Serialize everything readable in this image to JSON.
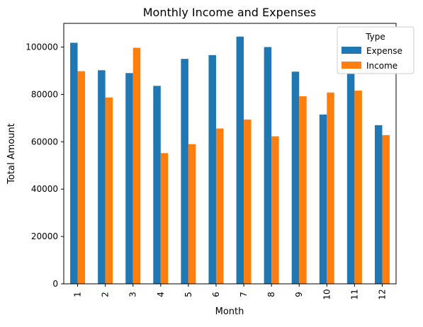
{
  "chart_data": {
    "type": "bar",
    "title": "Monthly Income and Expenses",
    "xlabel": "Month",
    "ylabel": "Total Amount",
    "categories": [
      "1",
      "2",
      "3",
      "4",
      "5",
      "6",
      "7",
      "8",
      "9",
      "10",
      "11",
      "12"
    ],
    "series": [
      {
        "name": "Expense",
        "color": "#1f77b4",
        "values": [
          101800,
          90200,
          89000,
          83600,
          95000,
          96600,
          104400,
          100000,
          89600,
          71500,
          90500,
          67000
        ]
      },
      {
        "name": "Income",
        "color": "#ff7f0e",
        "values": [
          89800,
          78700,
          99700,
          55200,
          59000,
          65600,
          69400,
          62300,
          79200,
          80800,
          81600,
          62800
        ]
      }
    ],
    "ylim": [
      0,
      110000
    ],
    "yticks": [
      0,
      20000,
      40000,
      60000,
      80000,
      100000
    ],
    "legend": {
      "title": "Type",
      "position": "top-right"
    },
    "grid": false
  }
}
